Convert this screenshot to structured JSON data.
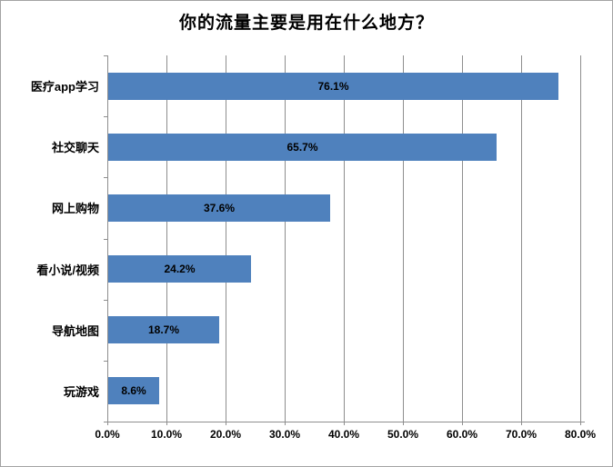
{
  "chart": {
    "title": "你的流量主要是用在什么地方？"
  },
  "chart_data": {
    "type": "bar",
    "orientation": "horizontal",
    "title": "你的流量主要是用在什么地方？",
    "categories": [
      "医疗app学习",
      "社交聊天",
      "网上购物",
      "看小说/视频",
      "导航地图",
      "玩游戏"
    ],
    "values": [
      76.1,
      65.7,
      37.6,
      24.2,
      18.7,
      8.6
    ],
    "value_labels": [
      "76.1%",
      "65.7%",
      "37.6%",
      "24.2%",
      "18.7%",
      "8.6%"
    ],
    "xlabel": "",
    "ylabel": "",
    "xlim": [
      0,
      80
    ],
    "x_tick_values": [
      0,
      10,
      20,
      30,
      40,
      50,
      60,
      70,
      80
    ],
    "x_tick_labels": [
      "0.0%",
      "10.0%",
      "20.0%",
      "30.0%",
      "40.0%",
      "50.0%",
      "60.0%",
      "70.0%",
      "80.0%"
    ],
    "grid": true,
    "legend": false,
    "bar_color": "#4F81BD",
    "label_color": "#000000",
    "gridline_color": "#8E8E8E",
    "axis_color": "#8E8E8E",
    "border_color": "#A3A3A3",
    "background": "#FFFFFF"
  }
}
